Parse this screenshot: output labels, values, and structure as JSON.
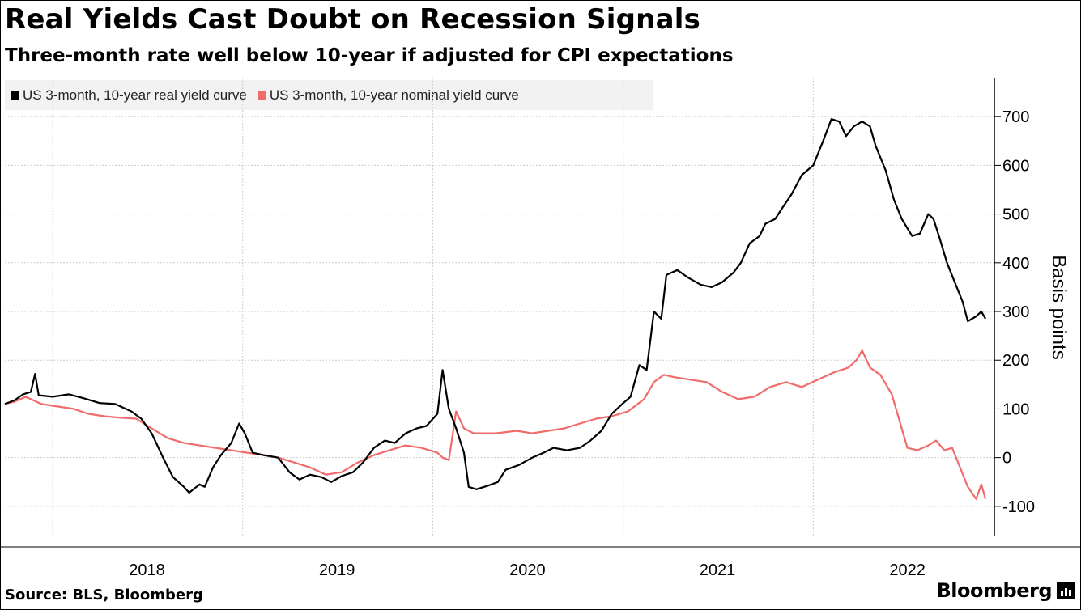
{
  "header": {
    "title": "Real Yields Cast Doubt on Recession Signals",
    "subtitle": "Three-month rate well below 10-year if adjusted for CPI expectations"
  },
  "footer": {
    "source": "Source: BLS, Bloomberg",
    "brand": "Bloomberg"
  },
  "colors": {
    "real": "#000000",
    "nominal": "#f26b6b",
    "grid": "#cccccc",
    "axis": "#000000"
  },
  "chart_data": {
    "type": "line",
    "title": "Real Yields Cast Doubt on Recession Signals",
    "subtitle": "Three-month rate well below 10-year if adjusted for CPI expectations",
    "xlabel": "",
    "ylabel": "Basis points",
    "xlim": [
      "2017-10-01",
      "2022-12-15"
    ],
    "ylim": [
      -160,
      780
    ],
    "x_ticks": [
      "2018",
      "2019",
      "2020",
      "2021",
      "2022"
    ],
    "y_ticks": [
      -100,
      0,
      100,
      200,
      300,
      400,
      500,
      600,
      700
    ],
    "y_axis_position": "right",
    "grid": true,
    "legend": "top-left",
    "series": [
      {
        "name": "US 3-month, 10-year real yield curve",
        "color": "#000000",
        "points": [
          [
            "2017-10-01",
            110
          ],
          [
            "2017-10-20",
            118
          ],
          [
            "2017-11-05",
            130
          ],
          [
            "2017-11-20",
            135
          ],
          [
            "2017-11-28",
            172
          ],
          [
            "2017-12-05",
            128
          ],
          [
            "2018-01-01",
            125
          ],
          [
            "2018-02-01",
            130
          ],
          [
            "2018-03-01",
            122
          ],
          [
            "2018-04-01",
            112
          ],
          [
            "2018-05-01",
            110
          ],
          [
            "2018-06-01",
            95
          ],
          [
            "2018-06-20",
            80
          ],
          [
            "2018-07-10",
            50
          ],
          [
            "2018-08-01",
            0
          ],
          [
            "2018-08-20",
            -40
          ],
          [
            "2018-09-10",
            -60
          ],
          [
            "2018-09-20",
            -72
          ],
          [
            "2018-10-10",
            -55
          ],
          [
            "2018-10-20",
            -60
          ],
          [
            "2018-11-05",
            -20
          ],
          [
            "2018-11-20",
            5
          ],
          [
            "2018-12-10",
            30
          ],
          [
            "2018-12-25",
            70
          ],
          [
            "2019-01-05",
            50
          ],
          [
            "2019-01-20",
            10
          ],
          [
            "2019-02-10",
            5
          ],
          [
            "2019-03-10",
            0
          ],
          [
            "2019-04-01",
            -30
          ],
          [
            "2019-04-20",
            -45
          ],
          [
            "2019-05-10",
            -35
          ],
          [
            "2019-06-01",
            -40
          ],
          [
            "2019-06-20",
            -50
          ],
          [
            "2019-07-10",
            -38
          ],
          [
            "2019-08-01",
            -30
          ],
          [
            "2019-08-20",
            -10
          ],
          [
            "2019-09-10",
            20
          ],
          [
            "2019-10-01",
            35
          ],
          [
            "2019-10-20",
            30
          ],
          [
            "2019-11-10",
            50
          ],
          [
            "2019-12-01",
            60
          ],
          [
            "2019-12-20",
            65
          ],
          [
            "2020-01-10",
            90
          ],
          [
            "2020-01-20",
            180
          ],
          [
            "2020-02-01",
            100
          ],
          [
            "2020-02-15",
            60
          ],
          [
            "2020-03-01",
            10
          ],
          [
            "2020-03-10",
            -60
          ],
          [
            "2020-03-25",
            -65
          ],
          [
            "2020-04-15",
            -58
          ],
          [
            "2020-05-05",
            -50
          ],
          [
            "2020-05-20",
            -25
          ],
          [
            "2020-06-15",
            -15
          ],
          [
            "2020-07-10",
            0
          ],
          [
            "2020-08-01",
            10
          ],
          [
            "2020-08-20",
            20
          ],
          [
            "2020-09-15",
            15
          ],
          [
            "2020-10-10",
            20
          ],
          [
            "2020-10-30",
            35
          ],
          [
            "2020-11-20",
            55
          ],
          [
            "2020-12-10",
            90
          ],
          [
            "2020-12-30",
            110
          ],
          [
            "2021-01-15",
            125
          ],
          [
            "2021-02-01",
            190
          ],
          [
            "2021-02-15",
            180
          ],
          [
            "2021-03-01",
            300
          ],
          [
            "2021-03-15",
            285
          ],
          [
            "2021-03-25",
            375
          ],
          [
            "2021-04-15",
            385
          ],
          [
            "2021-05-05",
            370
          ],
          [
            "2021-05-30",
            355
          ],
          [
            "2021-06-20",
            350
          ],
          [
            "2021-07-10",
            360
          ],
          [
            "2021-08-01",
            380
          ],
          [
            "2021-08-15",
            400
          ],
          [
            "2021-09-01",
            440
          ],
          [
            "2021-09-20",
            455
          ],
          [
            "2021-10-01",
            480
          ],
          [
            "2021-10-20",
            490
          ],
          [
            "2021-11-01",
            510
          ],
          [
            "2021-11-20",
            540
          ],
          [
            "2021-12-10",
            580
          ],
          [
            "2022-01-01",
            600
          ],
          [
            "2022-01-20",
            650
          ],
          [
            "2022-02-05",
            695
          ],
          [
            "2022-02-20",
            690
          ],
          [
            "2022-03-05",
            660
          ],
          [
            "2022-03-20",
            680
          ],
          [
            "2022-04-05",
            690
          ],
          [
            "2022-04-20",
            680
          ],
          [
            "2022-05-01",
            640
          ],
          [
            "2022-05-20",
            590
          ],
          [
            "2022-06-05",
            530
          ],
          [
            "2022-06-20",
            490
          ],
          [
            "2022-07-10",
            455
          ],
          [
            "2022-07-25",
            460
          ],
          [
            "2022-08-10",
            500
          ],
          [
            "2022-08-20",
            490
          ],
          [
            "2022-09-01",
            450
          ],
          [
            "2022-09-15",
            400
          ],
          [
            "2022-09-30",
            360
          ],
          [
            "2022-10-15",
            320
          ],
          [
            "2022-10-25",
            280
          ],
          [
            "2022-11-10",
            290
          ],
          [
            "2022-11-20",
            300
          ],
          [
            "2022-11-28",
            285
          ]
        ]
      },
      {
        "name": "US 3-month, 10-year nominal yield curve",
        "color": "#f26b6b",
        "points": [
          [
            "2017-10-01",
            110
          ],
          [
            "2017-10-20",
            115
          ],
          [
            "2017-11-10",
            125
          ],
          [
            "2017-12-10",
            110
          ],
          [
            "2018-01-10",
            105
          ],
          [
            "2018-02-10",
            100
          ],
          [
            "2018-03-10",
            90
          ],
          [
            "2018-04-10",
            85
          ],
          [
            "2018-05-10",
            82
          ],
          [
            "2018-06-10",
            80
          ],
          [
            "2018-07-10",
            60
          ],
          [
            "2018-08-10",
            40
          ],
          [
            "2018-09-10",
            30
          ],
          [
            "2018-10-10",
            25
          ],
          [
            "2018-11-10",
            20
          ],
          [
            "2018-12-10",
            15
          ],
          [
            "2019-01-10",
            10
          ],
          [
            "2019-02-10",
            5
          ],
          [
            "2019-03-10",
            0
          ],
          [
            "2019-04-10",
            -10
          ],
          [
            "2019-05-10",
            -20
          ],
          [
            "2019-06-10",
            -35
          ],
          [
            "2019-07-10",
            -30
          ],
          [
            "2019-08-10",
            -10
          ],
          [
            "2019-09-10",
            5
          ],
          [
            "2019-10-10",
            15
          ],
          [
            "2019-11-10",
            25
          ],
          [
            "2019-12-10",
            20
          ],
          [
            "2020-01-10",
            10
          ],
          [
            "2020-01-20",
            0
          ],
          [
            "2020-02-01",
            -5
          ],
          [
            "2020-02-15",
            95
          ],
          [
            "2020-03-01",
            60
          ],
          [
            "2020-03-20",
            50
          ],
          [
            "2020-05-01",
            50
          ],
          [
            "2020-06-10",
            55
          ],
          [
            "2020-07-10",
            50
          ],
          [
            "2020-08-10",
            55
          ],
          [
            "2020-09-10",
            60
          ],
          [
            "2020-10-10",
            70
          ],
          [
            "2020-11-10",
            80
          ],
          [
            "2020-12-10",
            85
          ],
          [
            "2021-01-10",
            95
          ],
          [
            "2021-02-10",
            120
          ],
          [
            "2021-03-01",
            155
          ],
          [
            "2021-03-20",
            170
          ],
          [
            "2021-04-10",
            165
          ],
          [
            "2021-05-10",
            160
          ],
          [
            "2021-06-10",
            155
          ],
          [
            "2021-07-10",
            135
          ],
          [
            "2021-08-10",
            120
          ],
          [
            "2021-09-10",
            125
          ],
          [
            "2021-10-10",
            145
          ],
          [
            "2021-11-10",
            155
          ],
          [
            "2021-12-10",
            145
          ],
          [
            "2022-01-10",
            160
          ],
          [
            "2022-02-10",
            175
          ],
          [
            "2022-03-10",
            185
          ],
          [
            "2022-03-25",
            200
          ],
          [
            "2022-04-05",
            220
          ],
          [
            "2022-04-20",
            185
          ],
          [
            "2022-05-10",
            170
          ],
          [
            "2022-06-01",
            130
          ],
          [
            "2022-06-20",
            60
          ],
          [
            "2022-07-01",
            20
          ],
          [
            "2022-07-20",
            15
          ],
          [
            "2022-08-10",
            25
          ],
          [
            "2022-08-25",
            35
          ],
          [
            "2022-09-10",
            15
          ],
          [
            "2022-09-25",
            20
          ],
          [
            "2022-10-10",
            -20
          ],
          [
            "2022-10-25",
            -60
          ],
          [
            "2022-11-10",
            -85
          ],
          [
            "2022-11-20",
            -55
          ],
          [
            "2022-11-28",
            -85
          ]
        ]
      }
    ]
  }
}
